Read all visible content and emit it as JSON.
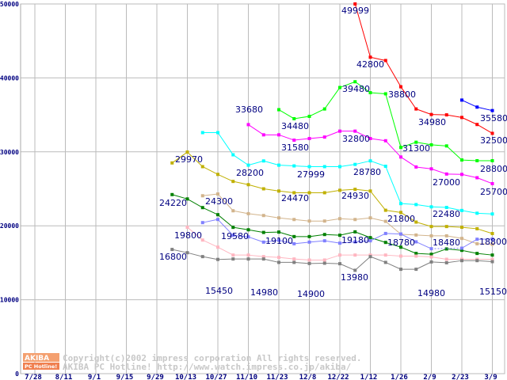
{
  "chart_data": {
    "type": "line",
    "title": "",
    "xlabel": "",
    "ylabel": "",
    "ylim": [
      0,
      50000
    ],
    "yticks": [
      "0",
      "10000",
      "20000",
      "30000",
      "40000",
      "50000"
    ],
    "x_tick_labels": [
      "7/28",
      "8/11",
      "9/1",
      "9/15",
      "9/29",
      "10/13",
      "10/27",
      "11/10",
      "11/23",
      "12/8",
      "12/22",
      "1/12",
      "1/26",
      "2/9",
      "2/23",
      "3/9"
    ],
    "weekly_points": 31,
    "grid": true,
    "series": [
      {
        "name": "red",
        "color": "#ff0000",
        "start": 21,
        "values": [
          49999,
          42800,
          42350,
          38800,
          35800,
          35050,
          35000,
          34650,
          33700,
          32500
        ]
      },
      {
        "name": "blue",
        "color": "#0000ff",
        "start": 28,
        "values": [
          37000,
          36050,
          35580
        ]
      },
      {
        "name": "lime",
        "color": "#00ff00",
        "start": 16,
        "values": [
          35700,
          34480,
          34800,
          35800,
          38700,
          39480,
          38000,
          37850,
          30600,
          31300,
          30950,
          30800,
          28900,
          28800,
          28800
        ]
      },
      {
        "name": "magenta",
        "color": "#ff00ff",
        "start": 14,
        "values": [
          33680,
          32300,
          32300,
          31580,
          31800,
          32000,
          32800,
          32800,
          31800,
          31500,
          29300,
          27950,
          27700,
          27000,
          26950,
          26500,
          25700
        ]
      },
      {
        "name": "cyan",
        "color": "#00ffff",
        "start": 11,
        "values": [
          32600,
          32600,
          29600,
          28200,
          28770,
          28200,
          28100,
          27999,
          28000,
          28000,
          28300,
          28780,
          28050,
          23000,
          22870,
          22560,
          22480,
          22070,
          21700,
          21600
        ]
      },
      {
        "name": "olive",
        "color": "#c0b000",
        "start": 9,
        "values": [
          28500,
          29970,
          28000,
          26950,
          26000,
          25560,
          25000,
          24700,
          24470,
          24470,
          24470,
          24800,
          24930,
          24700,
          22100,
          21800,
          20500,
          19900,
          19900,
          19800,
          19600,
          18950
        ]
      },
      {
        "name": "tan",
        "color": "#d2b48c",
        "start": 11,
        "values": [
          24060,
          24300,
          22030,
          21640,
          21390,
          21070,
          20850,
          20640,
          20640,
          20960,
          20850,
          21070,
          20600,
          18860,
          18750,
          18640,
          18640,
          18290,
          17570,
          17500
        ]
      },
      {
        "name": "dark-green",
        "color": "#008000",
        "start": 9,
        "values": [
          24220,
          23630,
          22460,
          21500,
          19790,
          19460,
          19100,
          19150,
          18540,
          18540,
          18820,
          18720,
          19180,
          18400,
          17750,
          17110,
          16260,
          16150,
          16870,
          16680,
          16260,
          16040
        ]
      },
      {
        "name": "periwinkle",
        "color": "#8080ff",
        "start": 11,
        "values": [
          20430,
          20860,
          18700,
          18500,
          17790,
          18040,
          17570,
          17790,
          17970,
          17650,
          17830,
          17970,
          18960,
          18890,
          17830,
          16900,
          null,
          16970,
          18180,
          18220
        ]
      },
      {
        "name": "pink",
        "color": "#ffb6c1",
        "start": 10,
        "values": [
          19800,
          18070,
          17110,
          16040,
          16040,
          15830,
          15720,
          15510,
          15370,
          15370,
          16040,
          16040,
          16040,
          16040,
          15900,
          15900,
          15790,
          15470,
          15470,
          15470,
          15470
        ]
      },
      {
        "name": "gray",
        "color": "#808080",
        "start": 9,
        "values": [
          16800,
          16360,
          15830,
          15450,
          15510,
          15510,
          15510,
          15050,
          15050,
          14900,
          14940,
          14870,
          13980,
          15830,
          15050,
          14120,
          14120,
          15110,
          15000,
          15290,
          15290,
          15150
        ]
      }
    ],
    "annotations": [
      "49999",
      "42800",
      "38800",
      "34980",
      "35580",
      "32500",
      "33680",
      "34480",
      "31580",
      "39480",
      "32800",
      "31300",
      "28800",
      "27000",
      "25700",
      "28200",
      "27999",
      "28780",
      "29970",
      "24220",
      "24300",
      "24470",
      "24930",
      "21800",
      "22480",
      "19800",
      "19580",
      "19100",
      "19180",
      "18780",
      "18480",
      "18800",
      "16800",
      "15450",
      "14980",
      "14900",
      "13980",
      "14980",
      "15150"
    ]
  },
  "watermark": {
    "logo_top": "AKIBA",
    "logo_bottom": "PC Hotline!",
    "line1": "Copyright(c)2002 impress corporation All rights reserved.",
    "line2": "AKIBA PC Hotline!  http://www.watch.impress.co.jp/akiba/"
  }
}
